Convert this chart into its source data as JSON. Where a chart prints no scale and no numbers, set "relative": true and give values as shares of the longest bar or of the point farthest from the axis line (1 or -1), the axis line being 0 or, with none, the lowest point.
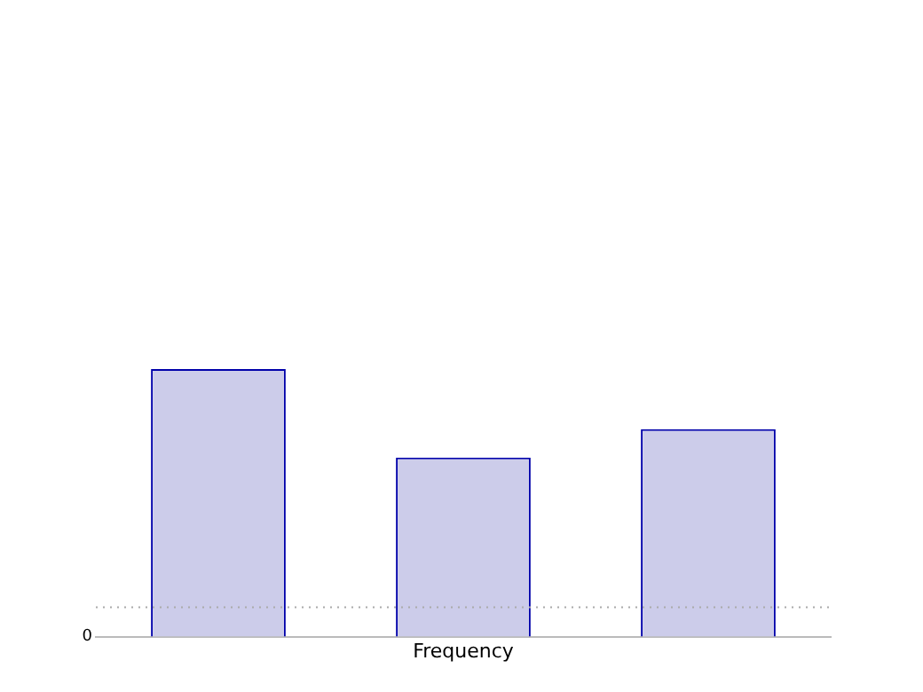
{
  "chart_data": {
    "type": "bar",
    "relative": true,
    "xlabel": "Frequency",
    "categories": [
      null,
      null,
      null
    ],
    "values": [
      1,
      0.669,
      0.775
    ],
    "color": "#ccccea",
    "grid": false,
    "legend": false,
    "ref_lines": [
      {
        "axis": "y",
        "value": 0.11,
        "color": "#aaaaaa",
        "line_style": "dotted"
      }
    ],
    "annotations": [
      "0"
    ]
  }
}
